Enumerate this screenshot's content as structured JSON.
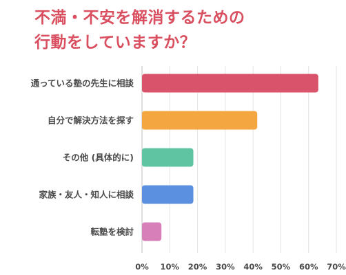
{
  "title_lines": [
    "不満・不安を解消するための",
    "行動をしていますか？"
  ],
  "chart_data": {
    "type": "bar",
    "orientation": "horizontal",
    "categories": [
      "通っている塾の先生に相談",
      "自分で解決方法を探す",
      "その他 (具体的に)",
      "家族・友人・知人に相談",
      "転塾を検討"
    ],
    "values": [
      63.5,
      41.5,
      18.5,
      18.5,
      7
    ],
    "colors": [
      "#d9546a",
      "#f4a640",
      "#5fc4a2",
      "#5b8fdf",
      "#d77fb9"
    ],
    "xlim": [
      0,
      70
    ],
    "xticks": [
      "0%",
      "10%",
      "20%",
      "30%",
      "40%",
      "50%",
      "60%",
      "70%"
    ],
    "grid": true,
    "legend": "none"
  }
}
